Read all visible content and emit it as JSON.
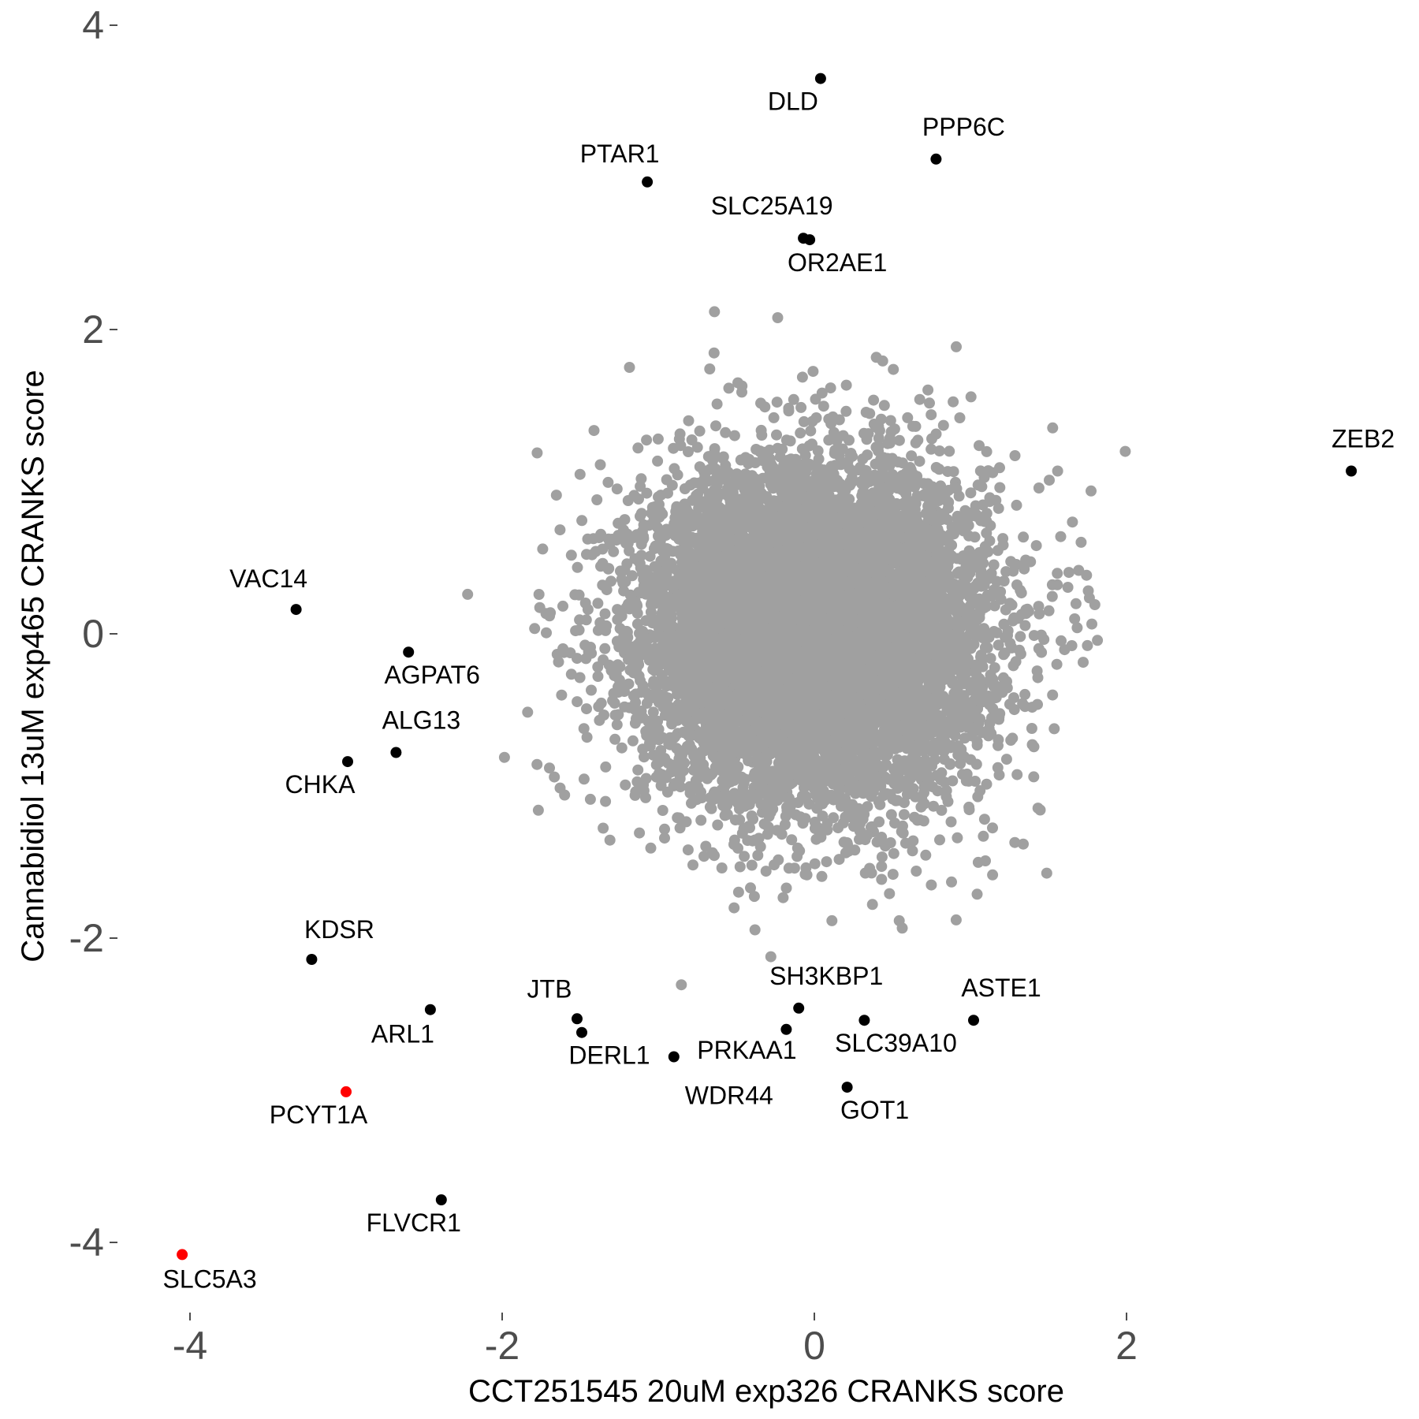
{
  "chart_data": {
    "type": "scatter",
    "title": "",
    "xlabel": "CCT251545 20uM exp326 CRANKS score",
    "ylabel": "Cannabidiol 13uM exp465 CRANKS score",
    "xlim": [
      -4.4,
      3.7
    ],
    "ylim": [
      -4.4,
      4.2
    ],
    "x_ticks": [
      -4,
      -2,
      0,
      2
    ],
    "y_ticks": [
      -4,
      -2,
      0,
      2,
      4
    ],
    "x_tick_labels": [
      "-4",
      "-2",
      "0",
      "2"
    ],
    "y_tick_labels": [
      "-4",
      "-2",
      "0",
      "2",
      "4"
    ],
    "grid": false,
    "colors": {
      "background_points": "#a0a0a0",
      "labeled_points": "#000000",
      "highlight_points": "#ff0000",
      "tick_text": "#4d4d4d",
      "axis_title": "#000000"
    },
    "background_points": {
      "approx_count": 18000,
      "center_x": 0.0,
      "center_y": 0.0,
      "sd_x": 0.55,
      "sd_y": 0.55
    },
    "labeled_points": [
      {
        "label": "DLD",
        "x": 0.04,
        "y": 3.65,
        "color": "#000000"
      },
      {
        "label": "PPP6C",
        "x": 0.78,
        "y": 3.12,
        "color": "#000000"
      },
      {
        "label": "PTAR1",
        "x": -1.07,
        "y": 2.97,
        "color": "#000000"
      },
      {
        "label": "SLC25A19",
        "x": -0.07,
        "y": 2.6,
        "color": "#000000"
      },
      {
        "label": "OR2AE1",
        "x": -0.03,
        "y": 2.59,
        "color": "#000000"
      },
      {
        "label": "ZEB2",
        "x": 3.44,
        "y": 1.07,
        "color": "#000000"
      },
      {
        "label": "VAC14",
        "x": -3.32,
        "y": 0.16,
        "color": "#000000"
      },
      {
        "label": "AGPAT6",
        "x": -2.6,
        "y": -0.12,
        "color": "#000000"
      },
      {
        "label": "ALG13",
        "x": -2.68,
        "y": -0.78,
        "color": "#000000"
      },
      {
        "label": "CHKA",
        "x": -2.99,
        "y": -0.84,
        "color": "#000000"
      },
      {
        "label": "KDSR",
        "x": -3.22,
        "y": -2.14,
        "color": "#000000"
      },
      {
        "label": "ARL1",
        "x": -2.46,
        "y": -2.47,
        "color": "#000000"
      },
      {
        "label": "JTB",
        "x": -1.52,
        "y": -2.53,
        "color": "#000000"
      },
      {
        "label": "DERL1",
        "x": -1.49,
        "y": -2.62,
        "color": "#000000"
      },
      {
        "label": "WDR44",
        "x": -0.9,
        "y": -2.78,
        "color": "#000000"
      },
      {
        "label": "PRKAA1",
        "x": -0.18,
        "y": -2.6,
        "color": "#000000"
      },
      {
        "label": "SH3KBP1",
        "x": -0.1,
        "y": -2.46,
        "color": "#000000"
      },
      {
        "label": "SLC39A10",
        "x": 0.32,
        "y": -2.54,
        "color": "#000000"
      },
      {
        "label": "ASTE1",
        "x": 1.02,
        "y": -2.54,
        "color": "#000000"
      },
      {
        "label": "GOT1",
        "x": 0.21,
        "y": -2.98,
        "color": "#000000"
      },
      {
        "label": "PCYT1A",
        "x": -3.0,
        "y": -3.01,
        "color": "#ff0000"
      },
      {
        "label": "FLVCR1",
        "x": -2.39,
        "y": -3.72,
        "color": "#000000"
      },
      {
        "label": "SLC5A3",
        "x": -4.05,
        "y": -4.08,
        "color": "#ff0000"
      }
    ]
  }
}
